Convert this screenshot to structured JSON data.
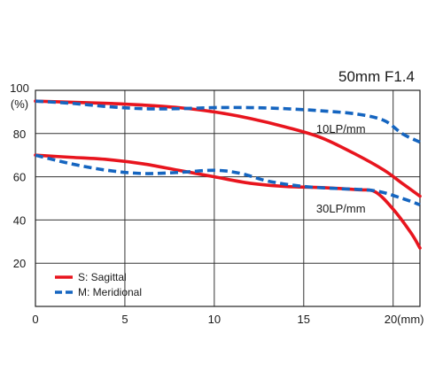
{
  "chart_data": {
    "type": "line",
    "title": "50mm F1.4",
    "xlabel": "",
    "ylabel": "",
    "xlim": [
      0,
      21.5
    ],
    "ylim": [
      0,
      100
    ],
    "grid": true,
    "x_ticks": [
      {
        "value": 0,
        "label": "0"
      },
      {
        "value": 5,
        "label": "5"
      },
      {
        "value": 10,
        "label": "10"
      },
      {
        "value": 15,
        "label": "15"
      },
      {
        "value": 20,
        "label": "20(mm)"
      }
    ],
    "y_ticks": [
      {
        "value": 20,
        "label": "20"
      },
      {
        "value": 40,
        "label": "40"
      },
      {
        "value": 60,
        "label": "60"
      },
      {
        "value": 80,
        "label": "80"
      },
      {
        "value": 100,
        "label": "100"
      }
    ],
    "y_unit": "(%)",
    "legend": {
      "position": "bottom-left",
      "entries": [
        {
          "label": "S: Sagittal",
          "color": "#e8151e",
          "style": "solid"
        },
        {
          "label": "M: Meridional",
          "color": "#1565c0",
          "style": "dashed"
        }
      ]
    },
    "annotations": [
      {
        "text": "10LP/mm",
        "x": 15.7,
        "y": 82
      },
      {
        "text": "30LP/mm",
        "x": 15.7,
        "y": 45
      }
    ],
    "series": [
      {
        "group": "10LP/mm",
        "kind": "S",
        "color": "#e8151e",
        "style": "solid",
        "points": [
          [
            0,
            95
          ],
          [
            2,
            94.5
          ],
          [
            4,
            94
          ],
          [
            6,
            93.2
          ],
          [
            8,
            92
          ],
          [
            10,
            90
          ],
          [
            12,
            87
          ],
          [
            14,
            83
          ],
          [
            16,
            78
          ],
          [
            18,
            70
          ],
          [
            19.5,
            63
          ],
          [
            20.5,
            57
          ],
          [
            21.5,
            51
          ]
        ]
      },
      {
        "group": "10LP/mm",
        "kind": "M",
        "color": "#1565c0",
        "style": "dashed",
        "points": [
          [
            0,
            95
          ],
          [
            2,
            94
          ],
          [
            4,
            92.5
          ],
          [
            6,
            91.5
          ],
          [
            8,
            91.5
          ],
          [
            10,
            92
          ],
          [
            12,
            92
          ],
          [
            14,
            91.5
          ],
          [
            16,
            90.5
          ],
          [
            18,
            89
          ],
          [
            19.5,
            86
          ],
          [
            20.5,
            80
          ],
          [
            21.5,
            76
          ]
        ]
      },
      {
        "group": "30LP/mm",
        "kind": "S",
        "color": "#e8151e",
        "style": "solid",
        "points": [
          [
            0,
            70
          ],
          [
            2,
            69
          ],
          [
            4,
            68
          ],
          [
            6,
            66
          ],
          [
            8,
            63
          ],
          [
            10,
            60
          ],
          [
            12,
            57
          ],
          [
            14,
            55.5
          ],
          [
            16,
            55
          ],
          [
            18,
            54
          ],
          [
            19,
            53
          ],
          [
            20,
            45
          ],
          [
            21,
            34
          ],
          [
            21.5,
            27
          ]
        ]
      },
      {
        "group": "30LP/mm",
        "kind": "M",
        "color": "#1565c0",
        "style": "dashed",
        "points": [
          [
            0,
            70
          ],
          [
            2,
            66
          ],
          [
            4,
            63
          ],
          [
            6,
            61.5
          ],
          [
            8,
            62
          ],
          [
            10,
            63
          ],
          [
            11.5,
            61.5
          ],
          [
            13,
            58
          ],
          [
            15,
            55.5
          ],
          [
            17,
            54.5
          ],
          [
            19,
            53.5
          ],
          [
            20.5,
            50
          ],
          [
            21.5,
            47
          ]
        ]
      }
    ]
  }
}
